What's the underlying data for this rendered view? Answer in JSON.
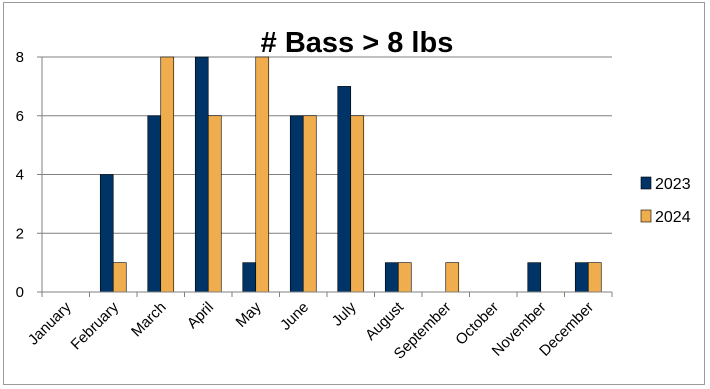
{
  "chart_data": {
    "type": "bar",
    "title": "# Bass > 8 lbs",
    "xlabel": "",
    "ylabel": "",
    "categories": [
      "January",
      "February",
      "March",
      "April",
      "May",
      "June",
      "July",
      "August",
      "September",
      "October",
      "November",
      "December"
    ],
    "series": [
      {
        "name": "2023",
        "values": [
          0,
          4,
          6,
          8,
          1,
          6,
          7,
          1,
          0,
          0,
          1,
          1
        ]
      },
      {
        "name": "2024",
        "values": [
          0,
          1,
          8,
          6,
          8,
          6,
          6,
          1,
          1,
          0,
          0,
          1
        ]
      }
    ],
    "ylim": [
      0,
      8
    ],
    "yticks": [
      "0",
      "2",
      "4",
      "6",
      "8"
    ],
    "grid": true,
    "legend_position": "right",
    "colors": {
      "2023": "#003366",
      "2024": "#f0ad4e",
      "bar_outline": "#000000",
      "grid": "#808080"
    }
  }
}
